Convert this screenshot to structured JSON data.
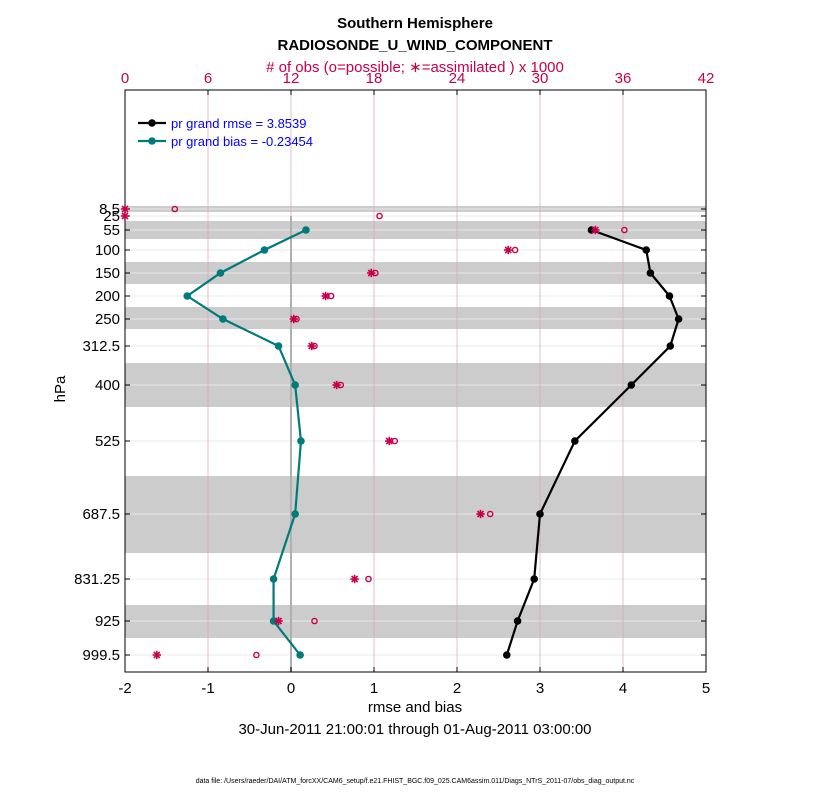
{
  "colors": {
    "rmse": "#000000",
    "bias": "#007a7a",
    "obs": "#c8004b",
    "band": "#cccccc",
    "grid": "#e8e8e8",
    "obs_grid": "#e0a0b8",
    "legend_text": "#0000ff",
    "zero_line": "#b0b0b0"
  },
  "header": {
    "title": "Southern Hemisphere",
    "subtitle": "RADIOSONDE_U_WIND_COMPONENT",
    "top_axis_label": "# of obs (o=possible; ∗=assimilated ) x 1000"
  },
  "footer": {
    "date_range": "30-Jun-2011 21:00:01 through 01-Aug-2011 03:00:00",
    "data_file": "data file: /Users/raeder/DAI/ATM_forcXX/CAM6_setup/f.e21.FHIST_BGC.f09_025.CAM6assim.011/Diags_NTrS_2011-07/obs_diag_output.nc"
  },
  "chart_data": {
    "type": "line",
    "title": "Southern Hemisphere",
    "subtitle": "RADIOSONDE_U_WIND_COMPONENT",
    "xlabel": "rmse and bias",
    "ylabel": "hPa",
    "x_top_label": "# of obs (o=possible; ∗=assimilated ) x 1000",
    "xlim": [
      -2,
      5
    ],
    "x_ticks": [
      -2,
      -1,
      0,
      1,
      2,
      3,
      4,
      5
    ],
    "x_top_lim": [
      0,
      42
    ],
    "x_top_ticks": [
      0,
      6,
      12,
      18,
      24,
      30,
      36,
      42
    ],
    "levels": [
      "8.5",
      "25",
      "55",
      "100",
      "150",
      "200",
      "250",
      "312.5",
      "400",
      "525",
      "687.5",
      "831.25",
      "925",
      "999.5"
    ],
    "series": [
      {
        "name": "pr grand rmse",
        "legend": "pr grand rmse = 3.8539",
        "levels": [
          "55",
          "100",
          "150",
          "200",
          "250",
          "312.5",
          "400",
          "525",
          "687.5",
          "831.25",
          "925",
          "999.5"
        ],
        "values": [
          3.62,
          4.28,
          4.33,
          4.56,
          4.67,
          4.57,
          4.1,
          3.42,
          3.0,
          2.93,
          2.73,
          2.6
        ]
      },
      {
        "name": "pr grand bias",
        "legend": "pr grand bias = -0.23454",
        "levels": [
          "55",
          "100",
          "150",
          "200",
          "250",
          "312.5",
          "400",
          "525",
          "687.5",
          "831.25",
          "925",
          "999.5"
        ],
        "values": [
          0.18,
          -0.32,
          -0.85,
          -1.25,
          -0.82,
          -0.15,
          0.05,
          0.12,
          0.05,
          -0.21,
          -0.21,
          0.11
        ]
      },
      {
        "name": "obs possible (x1000)",
        "marker": "o",
        "levels": [
          "8.5",
          "25",
          "55",
          "100",
          "150",
          "200",
          "250",
          "312.5",
          "400",
          "525",
          "687.5",
          "831.25",
          "925",
          "999.5"
        ],
        "values": [
          3.6,
          18.4,
          36.1,
          28.2,
          18.1,
          14.9,
          12.4,
          13.7,
          15.6,
          19.5,
          26.4,
          17.6,
          13.7,
          9.5
        ]
      },
      {
        "name": "obs assimilated (x1000)",
        "marker": "*",
        "levels": [
          "8.5",
          "25",
          "55",
          "100",
          "150",
          "200",
          "250",
          "312.5",
          "400",
          "525",
          "687.5",
          "831.25",
          "925",
          "999.5"
        ],
        "values": [
          0.0,
          0.0,
          34.0,
          27.7,
          17.8,
          14.5,
          12.2,
          13.5,
          15.3,
          19.1,
          25.7,
          16.6,
          11.1,
          2.3
        ]
      }
    ]
  }
}
